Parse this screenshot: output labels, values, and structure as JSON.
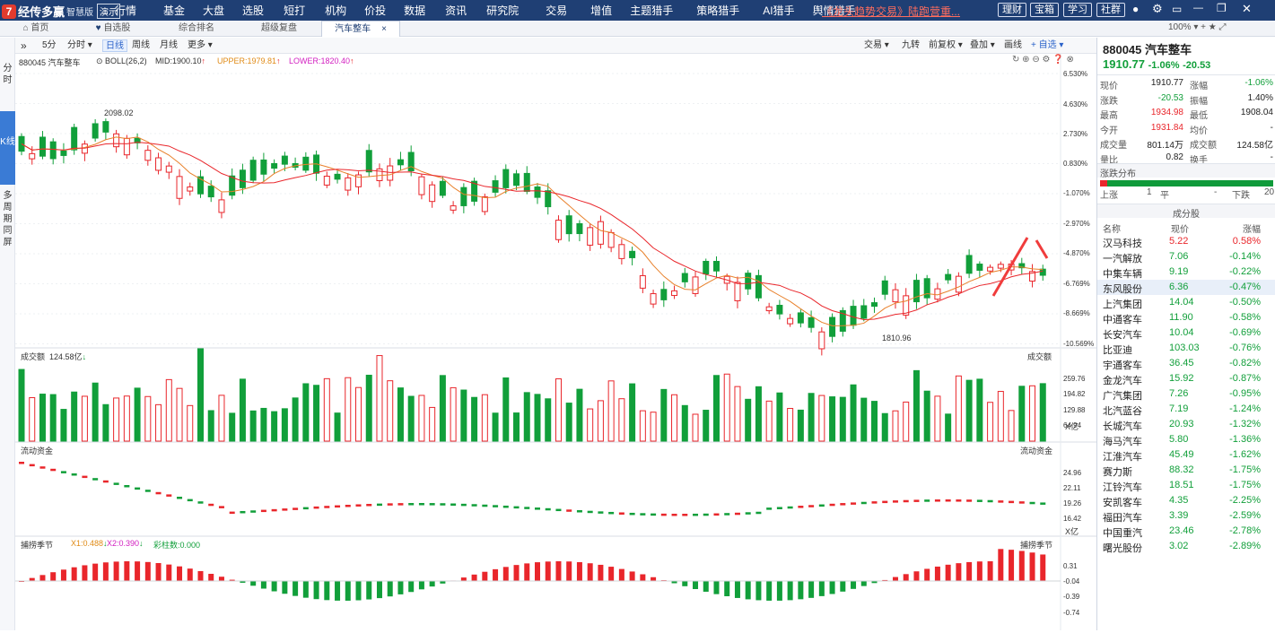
{
  "topbar": {
    "brand": "经传多赢",
    "edition": "智慧版",
    "demo": "演示",
    "menu": [
      "行情",
      "基金",
      "大盘",
      "选股",
      "短打",
      "机构",
      "价投",
      "数据",
      "资讯",
      "研究院",
      "交易",
      "增值",
      "主题猎手",
      "策略猎手",
      "AI猎手",
      "舆情猎手"
    ],
    "promo": "《龙头趋势交易》陆跑营重...",
    "pills": [
      "理财",
      "宝箱",
      "学习",
      "社群"
    ],
    "zoom": "100%"
  },
  "tabs": [
    {
      "label": "首页"
    },
    {
      "label": "自选股"
    },
    {
      "label": "综合排名"
    },
    {
      "label": "超级复盘"
    },
    {
      "label": "汽车整车"
    }
  ],
  "sidebar": [
    "分时",
    "K线",
    "多周期同屏"
  ],
  "toolbar": {
    "periods": [
      "5分",
      "分时 ▾",
      "日线",
      "周线",
      "月线",
      "更多 ▾"
    ],
    "right": [
      "交易 ▾",
      "九转",
      "前复权 ▾",
      "叠加 ▾",
      "画线",
      "+ 自选 ▾"
    ]
  },
  "main_chart": {
    "name": "880045 汽车整车",
    "indicator": "BOLL(26,2)",
    "mid": "MID:1900.10",
    "upper": "UPPER:1979.81",
    "lower": "LOWER:1820.40",
    "y_ticks": [
      "6.530%",
      "4.630%",
      "2.730%",
      "0.830%",
      "-1.070%",
      "-2.970%",
      "-4.870%",
      "-6.769%",
      "-8.669%",
      "-10.569%"
    ],
    "high_label": "2098.02",
    "low_label": "1810.96"
  },
  "volume_chart": {
    "title": "成交额",
    "value": "124.58亿",
    "right_title": "成交额",
    "y_ticks": [
      "259.76",
      "194.82",
      "129.88",
      "64.94"
    ],
    "unit": "X亿"
  },
  "flow_chart": {
    "title": "流动资金",
    "right_title": "流动资金",
    "y_ticks": [
      "24.96",
      "22.11",
      "19.26",
      "16.42"
    ],
    "unit": "X亿"
  },
  "season_chart": {
    "title": "捕捞季节",
    "x1": "X1:0.488",
    "x2": "X2:0.390",
    "bars": "彩柱数:0.000",
    "right_title": "捕捞季节",
    "y_ticks": [
      "0.31",
      "-0.04",
      "-0.39",
      "-0.74"
    ]
  },
  "quote": {
    "title": "880045 汽车整车",
    "price": "1910.77",
    "change_pct": "-1.06%",
    "change": "-20.53",
    "fields": [
      [
        "现价",
        "1910.77",
        "涨幅",
        "-1.06%"
      ],
      [
        "涨跌",
        "-20.53",
        "振幅",
        "1.40%"
      ],
      [
        "最高",
        "1934.98",
        "最低",
        "1908.04"
      ],
      [
        "今开",
        "1931.84",
        "均价",
        "-"
      ],
      [
        "成交量",
        "801.14万",
        "成交额",
        "124.58亿"
      ],
      [
        "量比",
        "0.82",
        "换手",
        "-"
      ]
    ],
    "dist_title": "涨跌分布",
    "up_label": "上涨",
    "up": "1",
    "flat_label": "平",
    "flat": "-",
    "down_label": "下跌",
    "down": "20"
  },
  "constituents": {
    "title": "成分股",
    "headers": [
      "名称",
      "现价",
      "涨幅"
    ],
    "rows": [
      [
        "汉马科技",
        "5.22",
        "0.58%"
      ],
      [
        "一汽解放",
        "7.06",
        "-0.14%"
      ],
      [
        "中集车辆",
        "9.19",
        "-0.22%"
      ],
      [
        "东风股份",
        "6.36",
        "-0.47%"
      ],
      [
        "上汽集团",
        "14.04",
        "-0.50%"
      ],
      [
        "中通客车",
        "11.90",
        "-0.58%"
      ],
      [
        "长安汽车",
        "10.04",
        "-0.69%"
      ],
      [
        "比亚迪",
        "103.03",
        "-0.76%"
      ],
      [
        "宇通客车",
        "36.45",
        "-0.82%"
      ],
      [
        "金龙汽车",
        "15.92",
        "-0.87%"
      ],
      [
        "广汽集团",
        "7.26",
        "-0.95%"
      ],
      [
        "北汽蓝谷",
        "7.19",
        "-1.24%"
      ],
      [
        "长城汽车",
        "20.93",
        "-1.32%"
      ],
      [
        "海马汽车",
        "5.80",
        "-1.36%"
      ],
      [
        "江淮汽车",
        "45.49",
        "-1.62%"
      ],
      [
        "赛力斯",
        "88.32",
        "-1.75%"
      ],
      [
        "江铃汽车",
        "18.51",
        "-1.75%"
      ],
      [
        "安凯客车",
        "4.35",
        "-2.25%"
      ],
      [
        "福田汽车",
        "3.39",
        "-2.59%"
      ],
      [
        "中国重汽",
        "23.46",
        "-2.78%"
      ],
      [
        "曙光股份",
        "3.02",
        "-2.89%"
      ]
    ]
  },
  "colors": {
    "up": "#e9262b",
    "down": "#119f3a",
    "header": "#1f3f74",
    "accent": "#3a7bd5"
  }
}
